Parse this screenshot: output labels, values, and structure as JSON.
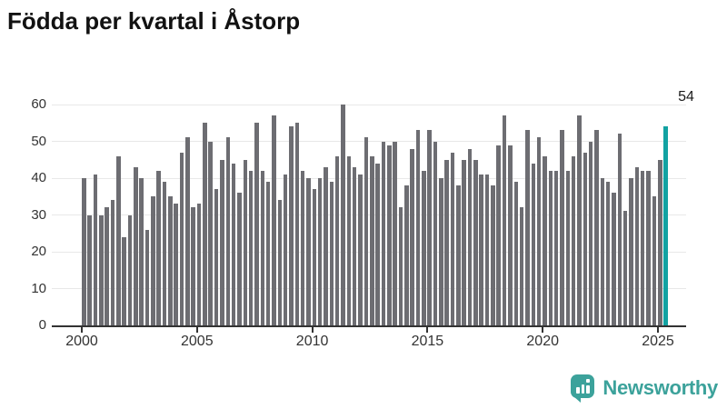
{
  "page": {
    "title": "Födda per kvartal i Åstorp"
  },
  "chart_data": {
    "type": "bar",
    "title": "Födda per kvartal i Åstorp",
    "frequency": "quarterly",
    "x_start": "2000 Q1",
    "x_end": "2025 Q2",
    "values": [
      40,
      30,
      41,
      30,
      32,
      34,
      46,
      24,
      30,
      43,
      40,
      26,
      35,
      42,
      39,
      35,
      33,
      47,
      51,
      32,
      33,
      55,
      50,
      37,
      45,
      51,
      44,
      36,
      45,
      42,
      55,
      42,
      39,
      57,
      34,
      41,
      54,
      55,
      42,
      40,
      37,
      40,
      43,
      39,
      46,
      60,
      46,
      43,
      41,
      51,
      46,
      44,
      50,
      49,
      50,
      32,
      38,
      48,
      53,
      42,
      53,
      50,
      40,
      45,
      47,
      38,
      45,
      48,
      45,
      41,
      41,
      38,
      49,
      57,
      49,
      39,
      32,
      53,
      44,
      51,
      46,
      42,
      42,
      53,
      42,
      46,
      57,
      47,
      50,
      53,
      40,
      39,
      36,
      52,
      31,
      40,
      43,
      42,
      42,
      35,
      45,
      54
    ],
    "highlight_last_value": 54,
    "annotation_label": "54",
    "ylim": [
      0,
      60
    ],
    "ytick_labels": [
      "0",
      "10",
      "20",
      "30",
      "40",
      "50",
      "60"
    ],
    "xtick_labels": [
      "2000",
      "2005",
      "2010",
      "2015",
      "2020",
      "2025"
    ],
    "xtick_bar_indices": [
      0,
      20,
      40,
      60,
      80,
      100
    ],
    "grid": "horizontal",
    "legend": "none",
    "colors": {
      "bar": "#6d6d72",
      "highlight": "#12a2a2",
      "grid": "#e8e8e8",
      "axis": "#333333",
      "tick_text": "#333333",
      "title_text": "#121212"
    }
  },
  "footer": {
    "brand": "Newsworthy",
    "logo_color": "#3ca29b"
  }
}
